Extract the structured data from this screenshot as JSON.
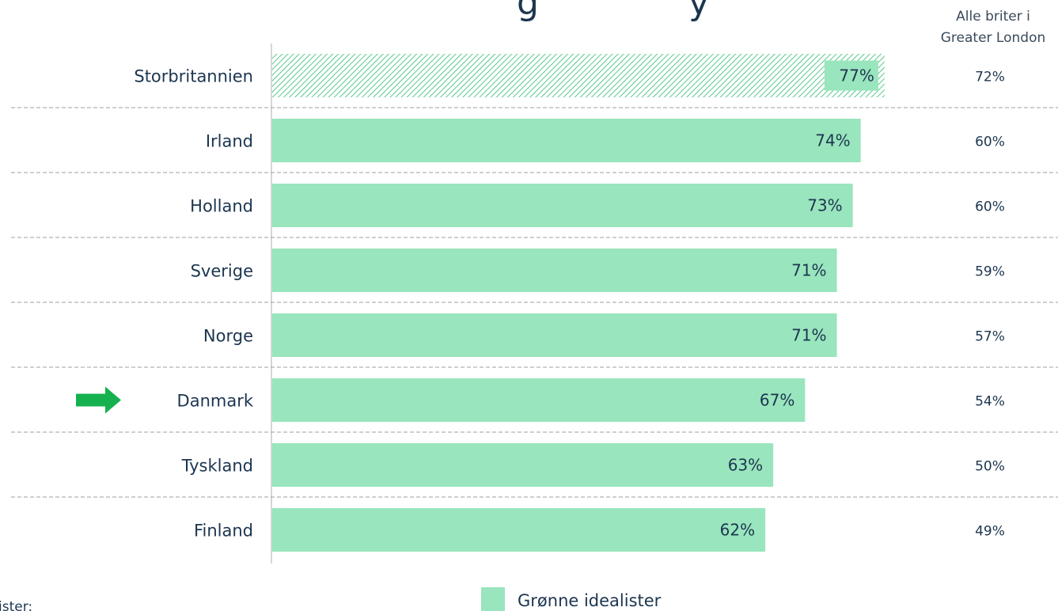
{
  "chart_data": {
    "type": "bar",
    "orientation": "horizontal",
    "categories": [
      "Storbritannien",
      "Irland",
      "Holland",
      "Sverige",
      "Norge",
      "Danmark",
      "Tyskland",
      "Finland"
    ],
    "series": [
      {
        "name": "Grønne idealister",
        "values": [
          77,
          74,
          73,
          71,
          71,
          67,
          63,
          62
        ],
        "labels": [
          "77%",
          "74%",
          "73%",
          "71%",
          "71%",
          "67%",
          "63%",
          "62%"
        ]
      },
      {
        "name": "Alle briter i Greater London",
        "values": [
          72,
          60,
          60,
          59,
          57,
          54,
          50,
          49
        ],
        "labels": [
          "72%",
          "60%",
          "60%",
          "59%",
          "57%",
          "54%",
          "50%",
          "49%"
        ]
      }
    ],
    "hatched_category": "Storbritannien",
    "highlight_category": "Danmark",
    "right_column_header": [
      "Alle briter i",
      "Greater London"
    ],
    "legend_label": "Grønne idealister",
    "left_note": "ister:",
    "title_fragment": "g",
    "title_fragment_right": "y",
    "xlim": [
      0,
      100
    ],
    "colors": {
      "bar": "#99e5bd",
      "hatch": "#57c98d",
      "arrow": "#16b14f",
      "text": "#1c3550",
      "divider": "#9aa0a6",
      "axis": "#c8c8c8"
    }
  }
}
